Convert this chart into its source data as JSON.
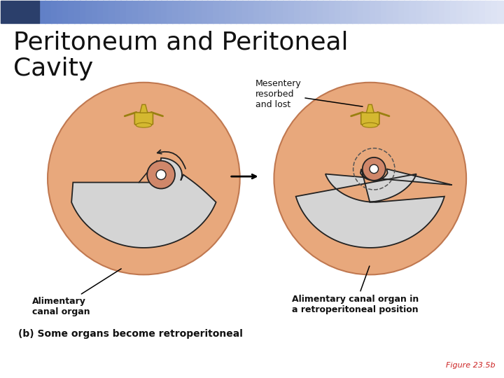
{
  "title_line1": "Peritoneum and Peritoneal",
  "title_line2": "Cavity",
  "title_fontsize": 26,
  "bg_color": "#ffffff",
  "circle_color": "#e8a87c",
  "circle_edge_color": "#c07850",
  "cavity_color": "#d4d4d4",
  "peritoneum_line_color": "#222222",
  "organ_outer_color": "#d0876a",
  "organ_inner_color": "#ffffff",
  "spine_color": "#d4b830",
  "spine_edge_color": "#9a8010",
  "dashed_line_color": "#555555",
  "label_fontsize": 9,
  "caption_fontsize": 10,
  "figure_label_fontsize": 8,
  "annotation_fontsize": 9,
  "caption_text": "(b) Some organs become retroperitoneal",
  "figure_label": "Figure 23.5b",
  "mesentery_label": "Mesentery\nresorbed\nand lost",
  "left_label_line1": "Alimentary",
  "left_label_line2": "canal organ",
  "right_label_line1": "Alimentary canal organ in",
  "right_label_line2": "a retroperitoneal position"
}
